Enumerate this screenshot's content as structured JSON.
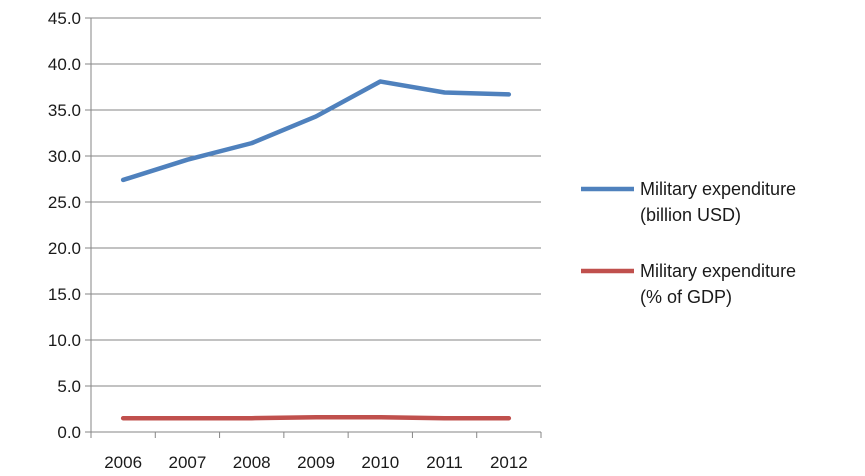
{
  "chart_data": {
    "type": "line",
    "title": "",
    "xlabel": "",
    "ylabel": "",
    "categories": [
      "2006",
      "2007",
      "2008",
      "2009",
      "2010",
      "2011",
      "2012"
    ],
    "ylim": [
      0,
      45
    ],
    "ytick_step": 5,
    "ytick_labels": [
      "0.0",
      "5.0",
      "10.0",
      "15.0",
      "20.0",
      "25.0",
      "30.0",
      "35.0",
      "40.0",
      "45.0"
    ],
    "grid": true,
    "legend_position": "right",
    "series": [
      {
        "name_line1": "Military expenditure",
        "name_line2": "(billion USD)",
        "color": "#4f81bd",
        "values": [
          27.4,
          29.6,
          31.4,
          34.3,
          38.1,
          36.9,
          36.7
        ]
      },
      {
        "name_line1": "Military expenditure",
        "name_line2": "(% of GDP)",
        "color": "#c0504d",
        "values": [
          1.5,
          1.5,
          1.5,
          1.6,
          1.6,
          1.5,
          1.5
        ]
      }
    ]
  }
}
